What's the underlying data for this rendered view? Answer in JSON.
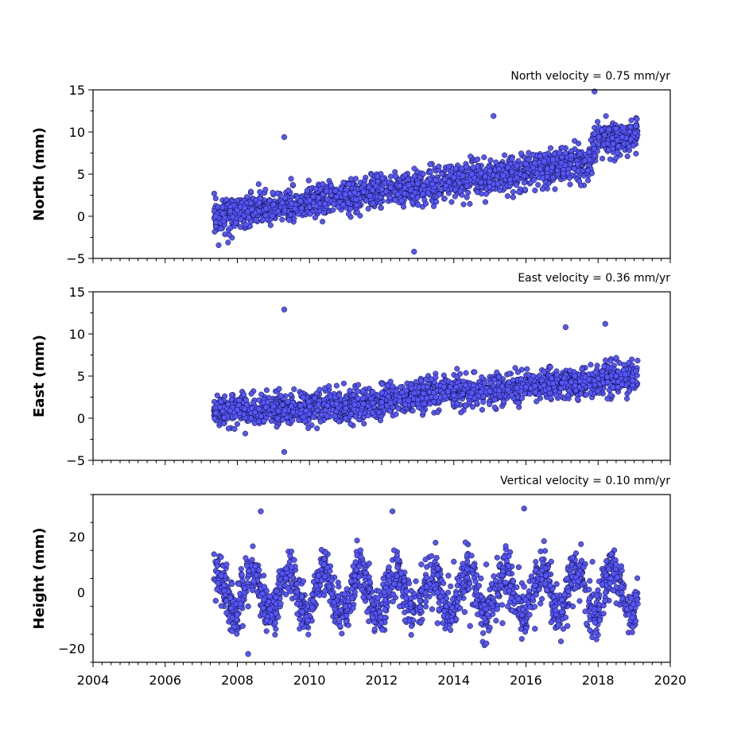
{
  "chart_data": [
    {
      "type": "scatter",
      "title": "North velocity = 0.75 mm/yr",
      "ylabel": "North (mm)",
      "xlim": [
        2004,
        2020
      ],
      "ylim": [
        -5,
        15
      ],
      "yticks": [
        "−5",
        "0",
        "5",
        "10",
        "15"
      ],
      "marker_color": "#5555ff",
      "velocity_mm_per_yr": 0.75,
      "series": [
        {
          "x": [
            2007.4,
            2007.6,
            2007.8,
            2008.0,
            2008.2,
            2008.4,
            2008.6,
            2008.8,
            2009.0,
            2009.25,
            2009.5,
            2009.75,
            2010.0,
            2010.25,
            2010.5,
            2010.75,
            2011.0,
            2011.25,
            2011.5,
            2011.75,
            2012.0,
            2012.25,
            2012.5,
            2012.75,
            2013.0,
            2013.25,
            2013.5,
            2013.75,
            2014.0,
            2014.25,
            2014.5,
            2014.75,
            2015.0,
            2015.25,
            2015.5,
            2015.75,
            2016.0,
            2016.25,
            2016.5,
            2016.75,
            2017.0,
            2017.25,
            2017.5,
            2017.75,
            2017.9,
            2018.1,
            2018.3,
            2018.5,
            2018.7,
            2018.9,
            2019.05,
            2009.3,
            2015.1,
            2017.9,
            2012.9
          ],
          "y": [
            0.0,
            0.3,
            0.6,
            0.7,
            1.0,
            0.8,
            0.6,
            0.9,
            1.4,
            1.6,
            1.5,
            1.8,
            1.9,
            2.2,
            2.0,
            2.3,
            2.6,
            2.8,
            2.9,
            3.1,
            3.2,
            3.4,
            3.6,
            3.7,
            3.9,
            4.1,
            4.3,
            4.4,
            4.6,
            4.8,
            5.0,
            5.1,
            5.4,
            5.6,
            5.8,
            6.0,
            6.2,
            6.3,
            6.5,
            6.7,
            7.0,
            7.2,
            7.4,
            7.6,
            9.8,
            10.2,
            10.3,
            10.4,
            10.5,
            10.6,
            10.7,
            9.4,
            11.9,
            14.8,
            -4.2
          ]
        }
      ]
    },
    {
      "type": "scatter",
      "title": "East velocity = 0.36 mm/yr",
      "ylabel": "East (mm)",
      "xlim": [
        2004,
        2020
      ],
      "ylim": [
        -5,
        15
      ],
      "yticks": [
        "−5",
        "0",
        "5",
        "10",
        "15"
      ],
      "marker_color": "#5555ff",
      "velocity_mm_per_yr": 0.36,
      "series": [
        {
          "x": [
            2007.4,
            2007.6,
            2007.8,
            2008.0,
            2008.2,
            2008.4,
            2008.6,
            2008.8,
            2009.0,
            2009.25,
            2009.5,
            2009.75,
            2010.0,
            2010.25,
            2010.5,
            2010.75,
            2011.0,
            2011.25,
            2011.5,
            2011.75,
            2012.0,
            2012.25,
            2012.5,
            2012.75,
            2013.0,
            2013.25,
            2013.5,
            2013.75,
            2014.0,
            2014.25,
            2014.5,
            2014.75,
            2015.0,
            2015.25,
            2015.5,
            2015.75,
            2016.0,
            2016.25,
            2016.5,
            2016.75,
            2017.0,
            2017.25,
            2017.5,
            2017.75,
            2018.0,
            2018.25,
            2018.5,
            2018.75,
            2019.05,
            2009.3,
            2009.3,
            2018.2,
            2017.1
          ],
          "y": [
            0.6,
            0.8,
            0.9,
            1.0,
            1.1,
            1.2,
            1.1,
            1.3,
            1.4,
            1.6,
            1.4,
            1.5,
            1.4,
            1.6,
            1.5,
            1.7,
            1.8,
            1.6,
            1.7,
            1.8,
            1.9,
            1.8,
            2.0,
            2.1,
            2.2,
            2.4,
            2.5,
            2.6,
            2.7,
            2.9,
            3.0,
            3.1,
            3.2,
            3.3,
            3.4,
            3.6,
            3.7,
            3.8,
            3.9,
            4.1,
            4.2,
            4.3,
            4.4,
            4.6,
            4.7,
            4.9,
            5.0,
            5.2,
            5.6,
            12.9,
            -4.0,
            11.2,
            10.8
          ]
        }
      ]
    },
    {
      "type": "scatter",
      "title": "Vertical velocity = 0.10 mm/yr",
      "ylabel": "Height (mm)",
      "xlim": [
        2004,
        2020
      ],
      "ylim": [
        -25,
        35
      ],
      "yticks": [
        "−20",
        "0",
        "20"
      ],
      "xticks": [
        "2004",
        "2006",
        "2008",
        "2010",
        "2012",
        "2014",
        "2016",
        "2018",
        "2020"
      ],
      "marker_color": "#5555ff",
      "velocity_mm_per_yr": 0.1,
      "series": [
        {
          "x": [
            2007.4,
            2007.55,
            2007.7,
            2007.85,
            2008.0,
            2008.15,
            2008.3,
            2008.45,
            2008.6,
            2008.75,
            2008.9,
            2009.05,
            2009.2,
            2009.35,
            2009.5,
            2009.65,
            2009.8,
            2009.95,
            2010.1,
            2010.25,
            2010.4,
            2010.55,
            2010.7,
            2010.85,
            2011.0,
            2011.15,
            2011.3,
            2011.45,
            2011.6,
            2011.75,
            2011.9,
            2012.05,
            2012.2,
            2012.35,
            2012.5,
            2012.65,
            2012.8,
            2012.95,
            2013.1,
            2013.25,
            2013.4,
            2013.55,
            2013.7,
            2013.85,
            2014.0,
            2014.15,
            2014.3,
            2014.45,
            2014.6,
            2014.75,
            2014.9,
            2015.05,
            2015.2,
            2015.35,
            2015.5,
            2015.65,
            2015.8,
            2015.95,
            2016.1,
            2016.25,
            2016.4,
            2016.55,
            2016.7,
            2016.85,
            2017.0,
            2017.15,
            2017.3,
            2017.45,
            2017.6,
            2017.75,
            2017.9,
            2018.05,
            2018.2,
            2018.35,
            2018.5,
            2018.65,
            2018.8,
            2018.95,
            2019.05,
            2008.3,
            2008.65,
            2012.3,
            2015.95
          ],
          "y": [
            -3,
            6,
            10,
            3,
            -8,
            -12,
            -5,
            4,
            8,
            2,
            -6,
            -11,
            -4,
            5,
            9,
            3,
            -7,
            -10,
            -3,
            6,
            10,
            2,
            -6,
            -12,
            -5,
            4,
            8,
            1,
            -7,
            -9,
            -2,
            5,
            9,
            3,
            -5,
            -10,
            -4,
            4,
            10,
            2,
            -6,
            -11,
            -3,
            6,
            11,
            4,
            -7,
            -12,
            -4,
            5,
            10,
            3,
            -6,
            -11,
            -5,
            4,
            9,
            2,
            -8,
            -13,
            -4,
            6,
            11,
            3,
            -7,
            -12,
            -5,
            4,
            9,
            1,
            -6,
            -10,
            -3,
            5,
            10,
            2,
            -6,
            -9,
            -1,
            -22,
            29,
            29,
            30
          ]
        }
      ]
    }
  ]
}
